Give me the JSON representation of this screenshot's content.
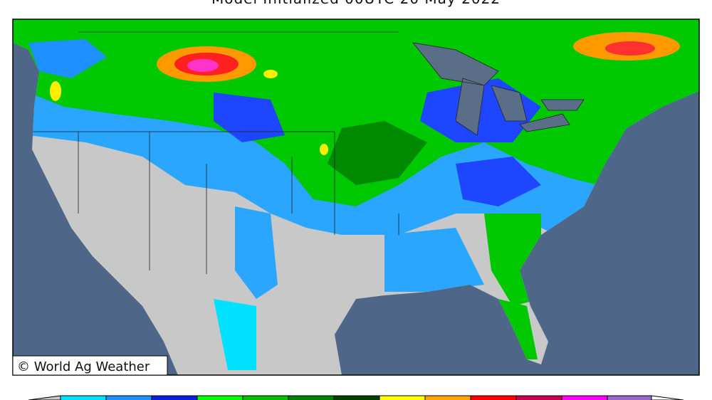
{
  "header": {
    "title": "Model Initialized 00UTC 20 May 2022"
  },
  "credit": "© World Ag Weather"
}
